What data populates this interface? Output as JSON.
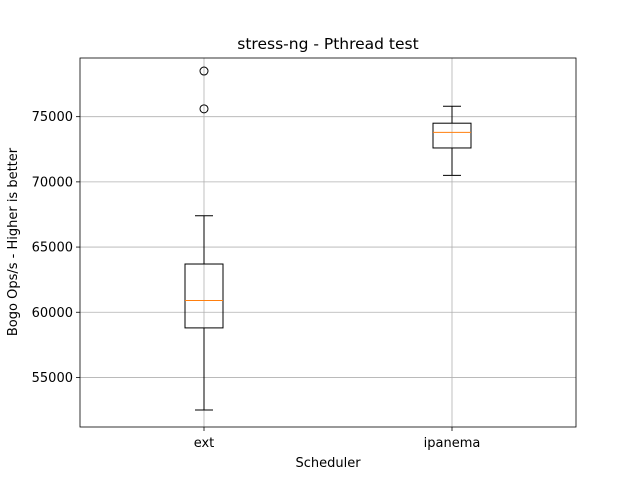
{
  "chart_data": {
    "type": "box",
    "title": "stress-ng - Pthread test",
    "xlabel": "Scheduler",
    "ylabel": "Bogo Ops/s - Higher is better",
    "categories": [
      "ext",
      "ipanema"
    ],
    "ylim": [
      51200,
      79500
    ],
    "yticks": [
      55000,
      60000,
      65000,
      70000,
      75000
    ],
    "grid": true,
    "boxes": [
      {
        "name": "ext",
        "whisker_low": 52500,
        "q1": 58800,
        "median": 60900,
        "q3": 63700,
        "whisker_high": 67400,
        "fliers": [
          78500,
          75600
        ]
      },
      {
        "name": "ipanema",
        "whisker_low": 70500,
        "q1": 72600,
        "median": 73800,
        "q3": 74500,
        "whisker_high": 75800,
        "fliers": []
      }
    ],
    "colors": {
      "median": "#ff7f0e",
      "grid": "#b0b0b0"
    }
  }
}
